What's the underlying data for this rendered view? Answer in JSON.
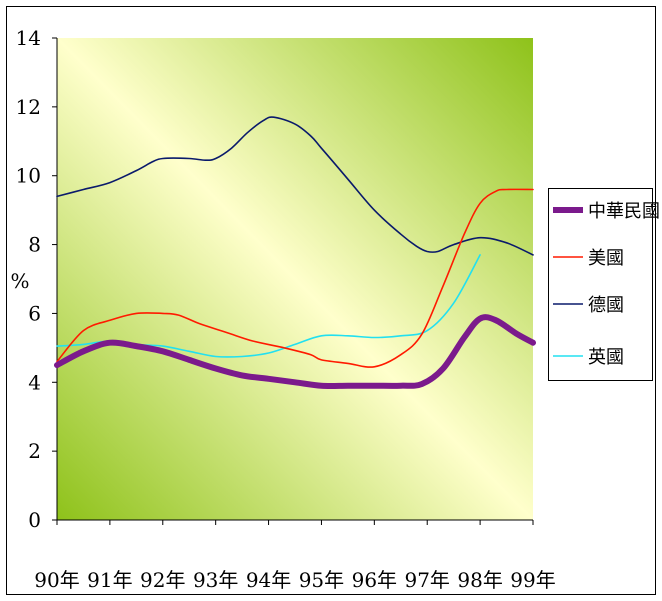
{
  "chart_data": {
    "type": "line",
    "title": "",
    "xlabel": "",
    "ylabel": "%",
    "ylim": [
      0,
      14
    ],
    "yticks": [
      0,
      2,
      4,
      6,
      8,
      10,
      12,
      14
    ],
    "categories": [
      "90年",
      "91年",
      "92年",
      "93年",
      "94年",
      "95年",
      "96年",
      "97年",
      "98年",
      "99年"
    ],
    "grid": false,
    "legend": "right",
    "series": [
      {
        "name": "中華民國",
        "color": "#7b1a8c",
        "points": [
          [
            0,
            4.5
          ],
          [
            0.5,
            4.9
          ],
          [
            1,
            5.15
          ],
          [
            1.5,
            5.05
          ],
          [
            2,
            4.9
          ],
          [
            2.5,
            4.65
          ],
          [
            3,
            4.4
          ],
          [
            3.5,
            4.2
          ],
          [
            4,
            4.1
          ],
          [
            4.5,
            4.0
          ],
          [
            5,
            3.9
          ],
          [
            5.5,
            3.9
          ],
          [
            6,
            3.9
          ],
          [
            6.5,
            3.9
          ],
          [
            6.9,
            3.95
          ],
          [
            7.3,
            4.4
          ],
          [
            7.7,
            5.3
          ],
          [
            8,
            5.85
          ],
          [
            8.3,
            5.8
          ],
          [
            8.7,
            5.4
          ],
          [
            9,
            5.15
          ]
        ]
      },
      {
        "name": "美國",
        "color": "#ff1a00",
        "points": [
          [
            0,
            4.6
          ],
          [
            0.5,
            5.5
          ],
          [
            1,
            5.8
          ],
          [
            1.5,
            6.0
          ],
          [
            2,
            6.0
          ],
          [
            2.3,
            5.95
          ],
          [
            2.7,
            5.7
          ],
          [
            3.2,
            5.45
          ],
          [
            3.7,
            5.2
          ],
          [
            4.3,
            5.0
          ],
          [
            4.8,
            4.8
          ],
          [
            5,
            4.65
          ],
          [
            5.5,
            4.55
          ],
          [
            6,
            4.45
          ],
          [
            6.5,
            4.8
          ],
          [
            6.9,
            5.4
          ],
          [
            7.3,
            6.8
          ],
          [
            7.7,
            8.3
          ],
          [
            8.0,
            9.2
          ],
          [
            8.3,
            9.55
          ],
          [
            8.5,
            9.6
          ],
          [
            9,
            9.6
          ]
        ]
      },
      {
        "name": "德國",
        "color": "#0a1a6b",
        "points": [
          [
            0,
            9.4
          ],
          [
            0.5,
            9.6
          ],
          [
            1,
            9.8
          ],
          [
            1.5,
            10.15
          ],
          [
            1.8,
            10.4
          ],
          [
            2,
            10.5
          ],
          [
            2.5,
            10.5
          ],
          [
            2.8,
            10.45
          ],
          [
            3,
            10.5
          ],
          [
            3.3,
            10.8
          ],
          [
            3.6,
            11.25
          ],
          [
            3.9,
            11.6
          ],
          [
            4.1,
            11.7
          ],
          [
            4.5,
            11.5
          ],
          [
            4.8,
            11.15
          ],
          [
            5,
            10.8
          ],
          [
            5.5,
            9.9
          ],
          [
            6,
            9.0
          ],
          [
            6.5,
            8.3
          ],
          [
            6.8,
            7.95
          ],
          [
            7,
            7.8
          ],
          [
            7.2,
            7.8
          ],
          [
            7.5,
            8.0
          ],
          [
            8,
            8.2
          ],
          [
            8.5,
            8.05
          ],
          [
            9,
            7.7
          ]
        ]
      },
      {
        "name": "英國",
        "color": "#22e0f0",
        "points": [
          [
            0,
            5.05
          ],
          [
            0.5,
            5.1
          ],
          [
            1,
            5.2
          ],
          [
            1.5,
            5.1
          ],
          [
            2,
            5.05
          ],
          [
            2.5,
            4.9
          ],
          [
            3,
            4.75
          ],
          [
            3.5,
            4.75
          ],
          [
            4,
            4.85
          ],
          [
            4.5,
            5.1
          ],
          [
            5,
            5.35
          ],
          [
            5.5,
            5.35
          ],
          [
            6,
            5.3
          ],
          [
            6.5,
            5.35
          ],
          [
            7,
            5.5
          ],
          [
            7.5,
            6.3
          ],
          [
            8,
            7.7
          ]
        ]
      }
    ]
  }
}
